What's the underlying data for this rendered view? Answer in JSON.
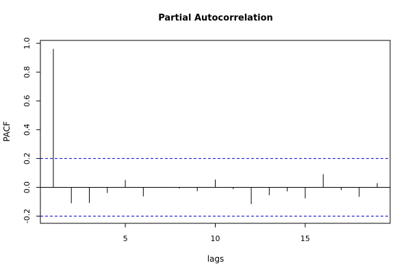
{
  "chart_data": {
    "type": "bar",
    "title": "Partial Autocorrelation",
    "xlabel": "lags",
    "ylabel": "PACF",
    "x": [
      1,
      2,
      3,
      4,
      5,
      6,
      7,
      8,
      9,
      10,
      11,
      12,
      13,
      14,
      15,
      16,
      17,
      18,
      19
    ],
    "values": [
      0.961,
      -0.111,
      -0.109,
      -0.039,
      0.051,
      -0.063,
      -0.003,
      -0.009,
      -0.027,
      0.054,
      -0.013,
      -0.117,
      -0.055,
      -0.028,
      -0.077,
      0.091,
      -0.019,
      -0.066,
      0.029
    ],
    "xlim": [
      0.28,
      19.72
    ],
    "ylim": [
      -0.25,
      1.02
    ],
    "xticks": [
      5,
      10,
      15
    ],
    "xtick_labels": [
      "5",
      "10",
      "15"
    ],
    "yticks": [
      -0.2,
      0.0,
      0.2,
      0.4,
      0.6,
      0.8,
      1.0
    ],
    "ytick_labels": [
      "-0.2",
      "0.0",
      "0.2",
      "0.4",
      "0.6",
      "0.8",
      "1.0"
    ],
    "confidence_bounds": [
      0.2,
      -0.2
    ],
    "confidence_color": "#0000cc",
    "zero_line_color": "#000000",
    "bar_color": "#000000",
    "grid": false
  }
}
